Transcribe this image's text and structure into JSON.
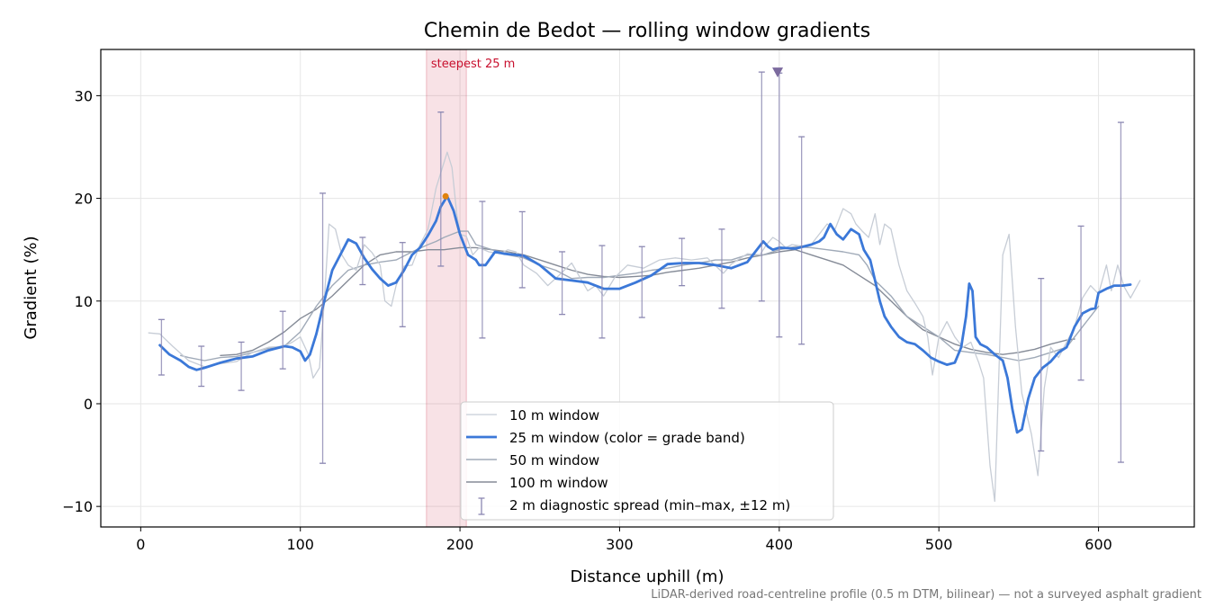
{
  "chart_data": {
    "type": "line",
    "title": "Chemin de Bedot — rolling window gradients",
    "xlabel": "Distance uphill (m)",
    "ylabel": "Gradient (%)",
    "xlim": [
      -25,
      660
    ],
    "ylim": [
      -12,
      34.5
    ],
    "xticks": [
      0,
      100,
      200,
      300,
      400,
      500,
      600
    ],
    "yticks": [
      -10,
      0,
      10,
      20,
      30
    ],
    "xtick_labels": [
      "0",
      "100",
      "200",
      "300",
      "400",
      "500",
      "600"
    ],
    "ytick_labels": [
      "−10",
      "0",
      "10",
      "20",
      "30"
    ],
    "grid": true,
    "legend_position": "lower center",
    "series": [
      {
        "name": "10 m window",
        "color": "#c7cdd6",
        "x": [
          5,
          12,
          20,
          30,
          40,
          50,
          60,
          70,
          80,
          90,
          95,
          100,
          105,
          108,
          112,
          115,
          118,
          122,
          126,
          130,
          135,
          140,
          145,
          150,
          153,
          157,
          160,
          165,
          170,
          175,
          180,
          185,
          188,
          192,
          195,
          198,
          200,
          204,
          208,
          212,
          218,
          225,
          230,
          235,
          240,
          248,
          255,
          262,
          270,
          280,
          285,
          290,
          297,
          305,
          315,
          325,
          335,
          345,
          355,
          365,
          370,
          380,
          388,
          392,
          396,
          400,
          404,
          408,
          412,
          416,
          420,
          425,
          430,
          435,
          440,
          445,
          448,
          452,
          456,
          460,
          463,
          466,
          470,
          475,
          480,
          485,
          490,
          493,
          496,
          500,
          505,
          510,
          515,
          520,
          525,
          528,
          532,
          535,
          538,
          540,
          544,
          548,
          552,
          558,
          562,
          566,
          570,
          575,
          580,
          585,
          590,
          595,
          600,
          605,
          608,
          612,
          616,
          620,
          626
        ],
        "y": [
          6.9,
          6.8,
          5.6,
          4.2,
          3.6,
          3.9,
          4.1,
          5,
          5.5,
          5.6,
          6,
          6.5,
          4.8,
          2.5,
          3.5,
          10,
          17.5,
          17,
          14.5,
          13.5,
          13,
          15.5,
          14.7,
          13.5,
          10,
          9.5,
          11.5,
          13.4,
          13.5,
          15.5,
          17,
          21,
          22.5,
          24.5,
          23,
          18.5,
          16.5,
          16.3,
          14.5,
          15.2,
          14.8,
          14.6,
          15,
          14.8,
          13.5,
          12.7,
          11.5,
          12.5,
          13.7,
          11,
          11.5,
          10.5,
          12.3,
          13.5,
          13.2,
          14,
          14.2,
          14,
          14.2,
          12.7,
          13.6,
          14.6,
          14.5,
          15.5,
          16.2,
          15.8,
          15.2,
          15.5,
          15.4,
          15.3,
          15.5,
          16.5,
          17.5,
          17,
          19,
          18.5,
          17.5,
          16.8,
          16.2,
          18.5,
          15.5,
          17.5,
          17,
          13.5,
          11,
          9.8,
          8.5,
          6.5,
          2.8,
          6.5,
          8,
          6.5,
          5.5,
          6,
          4,
          2.5,
          -6,
          -9.5,
          5,
          14.5,
          16.5,
          7.5,
          1,
          -3,
          -7,
          1.5,
          5.5,
          4.5,
          6,
          7.5,
          10.3,
          11.5,
          10.7,
          13.5,
          11,
          13.5,
          11.4,
          10.3,
          12
        ]
      },
      {
        "name": "25 m window (color = grade band)",
        "color": "#3b78d8",
        "x": [
          12,
          18,
          25,
          30,
          35,
          40,
          50,
          60,
          70,
          80,
          90,
          95,
          100,
          103,
          106,
          110,
          115,
          120,
          125,
          130,
          135,
          140,
          145,
          150,
          155,
          160,
          165,
          170,
          175,
          180,
          185,
          188,
          192,
          196,
          200,
          205,
          210,
          212,
          216,
          222,
          228,
          235,
          240,
          250,
          260,
          270,
          280,
          290,
          300,
          310,
          320,
          330,
          340,
          350,
          360,
          370,
          380,
          390,
          393,
          396,
          400,
          410,
          420,
          425,
          428,
          432,
          436,
          440,
          445,
          450,
          453,
          457,
          460,
          463,
          466,
          470,
          475,
          480,
          485,
          490,
          495,
          500,
          505,
          510,
          514,
          517,
          519,
          521,
          523,
          526,
          530,
          535,
          540,
          543,
          546,
          549,
          552,
          556,
          560,
          565,
          570,
          575,
          580,
          585,
          590,
          595,
          598,
          600,
          605,
          610,
          615,
          620
        ],
        "y": [
          5.7,
          4.8,
          4.2,
          3.6,
          3.3,
          3.5,
          4,
          4.4,
          4.6,
          5.2,
          5.6,
          5.5,
          5.1,
          4.2,
          4.8,
          6.8,
          10,
          13,
          14.5,
          16,
          15.6,
          14.2,
          13.1,
          12.2,
          11.5,
          11.8,
          13,
          14.5,
          15.2,
          16.4,
          17.8,
          19.2,
          20.2,
          18.8,
          16.5,
          14.5,
          14,
          13.5,
          13.5,
          14.8,
          14.6,
          14.5,
          14.4,
          13.5,
          12.2,
          12,
          11.8,
          11.2,
          11.2,
          11.8,
          12.5,
          13.6,
          13.7,
          13.7,
          13.5,
          13.2,
          13.8,
          15.8,
          15.3,
          15,
          15.2,
          15.1,
          15.5,
          15.8,
          16.2,
          17.5,
          16.5,
          16,
          17,
          16.5,
          15,
          14,
          12,
          10,
          8.5,
          7.5,
          6.5,
          6,
          5.8,
          5.2,
          4.5,
          4.1,
          3.8,
          4,
          5.5,
          8.5,
          11.7,
          11,
          6.5,
          5.8,
          5.5,
          4.8,
          4.2,
          2.5,
          -0.5,
          -2.8,
          -2.5,
          0.5,
          2.5,
          3.5,
          4.1,
          5,
          5.5,
          7.5,
          8.8,
          9.2,
          9.3,
          10.8,
          11.2,
          11.5,
          11.5,
          11.6
        ]
      },
      {
        "name": "50 m window",
        "color": "#a0aab8",
        "x": [
          25,
          30,
          40,
          50,
          60,
          70,
          80,
          90,
          100,
          110,
          120,
          130,
          140,
          150,
          160,
          170,
          180,
          185,
          190,
          195,
          200,
          205,
          210,
          220,
          230,
          240,
          250,
          260,
          270,
          280,
          290,
          300,
          310,
          320,
          330,
          340,
          350,
          360,
          370,
          380,
          390,
          400,
          410,
          420,
          430,
          440,
          450,
          455,
          460,
          470,
          480,
          490,
          500,
          510,
          520,
          530,
          540,
          550,
          560,
          570,
          580,
          590,
          600
        ],
        "y": [
          4.7,
          4.5,
          4.2,
          4.5,
          4.6,
          5,
          5.4,
          5.6,
          7,
          9.5,
          11.5,
          13,
          13.5,
          13.8,
          14,
          14.8,
          15.5,
          15.8,
          16.2,
          16.5,
          16.8,
          16.8,
          15.5,
          15,
          14.5,
          14.2,
          13.5,
          13,
          12.2,
          12.3,
          12.3,
          12.5,
          12.7,
          13,
          13.2,
          13.5,
          13.7,
          14,
          14,
          14.5,
          14.5,
          15,
          15.3,
          15.2,
          15,
          14.8,
          14.5,
          13.5,
          12,
          10.5,
          8.5,
          7.5,
          6.5,
          5.2,
          5,
          4.8,
          4.5,
          4.2,
          4.5,
          5,
          5.5,
          7.5,
          9.5
        ]
      },
      {
        "name": "100 m window",
        "color": "#858b97",
        "x": [
          50,
          60,
          70,
          80,
          90,
          100,
          110,
          120,
          130,
          140,
          150,
          160,
          170,
          180,
          190,
          200,
          210,
          220,
          230,
          240,
          250,
          260,
          270,
          280,
          290,
          300,
          310,
          320,
          330,
          340,
          350,
          360,
          370,
          380,
          390,
          400,
          410,
          420,
          430,
          440,
          450,
          460,
          470,
          480,
          490,
          500,
          510,
          520,
          530,
          540,
          550,
          560,
          570,
          580,
          585
        ],
        "y": [
          4.7,
          4.8,
          5.2,
          6,
          7,
          8.3,
          9.2,
          10.5,
          12,
          13.5,
          14.5,
          14.8,
          14.8,
          15,
          15,
          15.2,
          15.2,
          15,
          14.8,
          14.5,
          14,
          13.5,
          13,
          12.6,
          12.4,
          12.3,
          12.4,
          12.5,
          12.8,
          13,
          13.2,
          13.5,
          13.8,
          14.2,
          14.5,
          14.8,
          15,
          14.5,
          14,
          13.5,
          12.5,
          11.5,
          10,
          8.5,
          7.2,
          6.5,
          5.8,
          5.3,
          5,
          4.8,
          5,
          5.3,
          5.8,
          6.2,
          6.3
        ]
      }
    ],
    "errorbars": {
      "name": "2 m diagnostic spread (min–max, ±12 m)",
      "color": "#8b87b2",
      "x": [
        13,
        38,
        63,
        89,
        114,
        139,
        164,
        188,
        214,
        239,
        264,
        289,
        314,
        339,
        364,
        389,
        400,
        414,
        564,
        589,
        614
      ],
      "ymin": [
        2.8,
        1.7,
        1.3,
        3.4,
        -5.8,
        11.6,
        7.5,
        13.4,
        6.4,
        11.3,
        8.7,
        6.4,
        8.4,
        11.5,
        9.3,
        10,
        6.5,
        5.8,
        -4.6,
        2.3,
        -5.7
      ],
      "ymax": [
        8.2,
        5.6,
        6,
        9,
        20.5,
        16.2,
        15.7,
        28.4,
        19.7,
        18.7,
        14.8,
        15.4,
        15.3,
        16.1,
        17,
        32.3,
        32.2,
        26,
        12.2,
        17.3,
        27.4
      ]
    },
    "highlight": {
      "label": "steepest 25 m",
      "x_start": 179,
      "x_end": 204,
      "color": "#c8102e"
    },
    "peak_point": {
      "x": 191,
      "y": 20.2,
      "color": "#e0820c"
    },
    "max_marker": {
      "x": 399,
      "y": 32.3,
      "color": "#7b6a9e"
    }
  },
  "footnote": "LiDAR-derived road-centreline profile (0.5 m DTM, bilinear) — not a surveyed asphalt gradient"
}
